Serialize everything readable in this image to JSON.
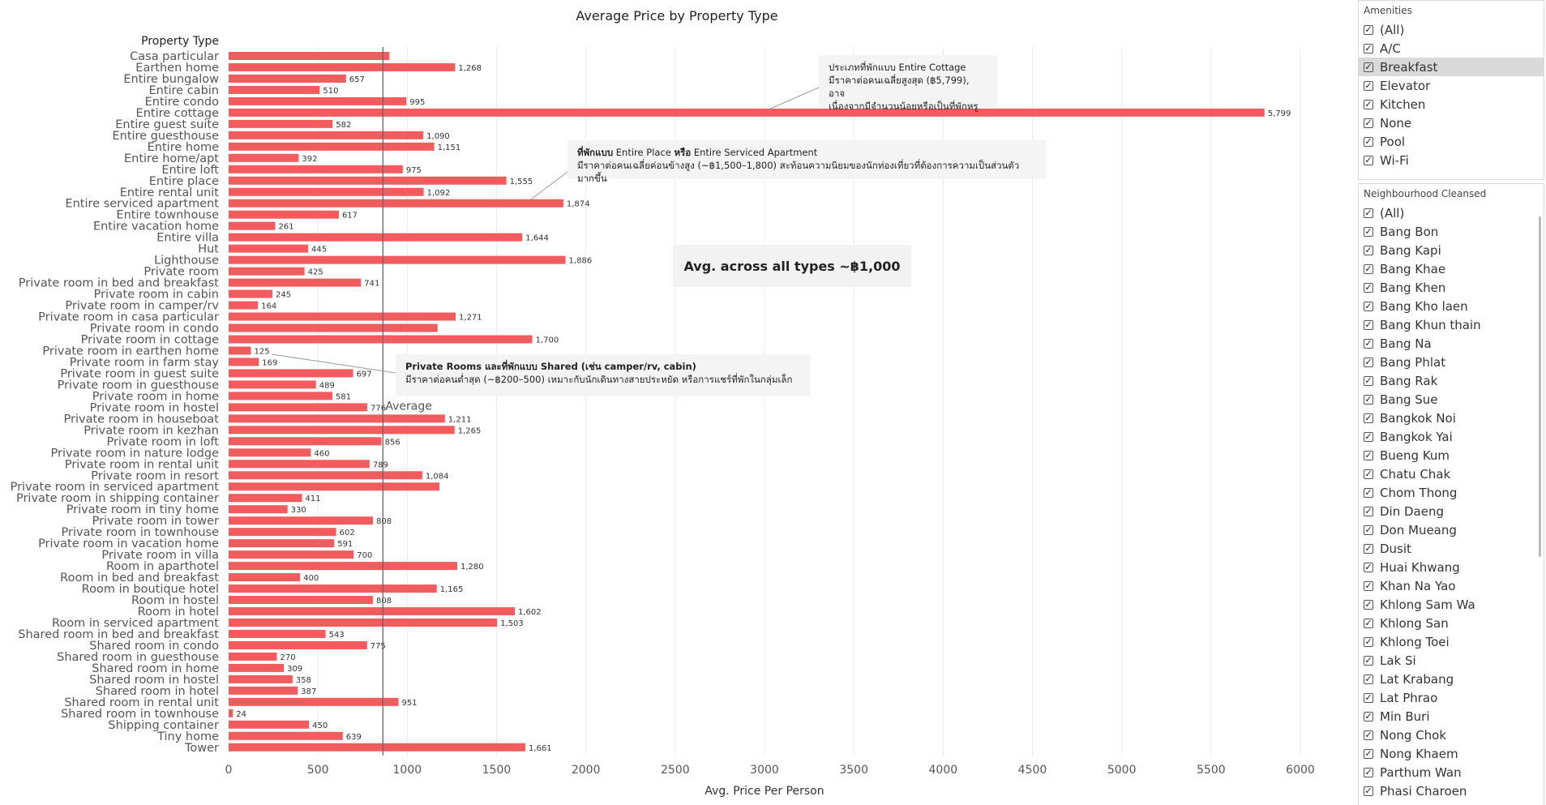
{
  "chart_data": {
    "type": "bar",
    "orientation": "horizontal",
    "title": "Average Price by Property Type",
    "ylabel": "Property Type",
    "xlabel": "Avg. Price Per Person",
    "xlim": [
      0,
      6000
    ],
    "xticks": [
      0,
      500,
      1000,
      1500,
      2000,
      2500,
      3000,
      3500,
      4000,
      4500,
      5000,
      5500,
      6000
    ],
    "grid": true,
    "bar_color": "#f25c5f",
    "average_line": {
      "label": "Average",
      "value": 1000
    },
    "categories": [
      "Casa particular",
      "Earthen home",
      "Entire bungalow",
      "Entire cabin",
      "Entire condo",
      "Entire cottage",
      "Entire guest suite",
      "Entire guesthouse",
      "Entire home",
      "Entire home/apt",
      "Entire loft",
      "Entire place",
      "Entire rental unit",
      "Entire serviced apartment",
      "Entire townhouse",
      "Entire vacation home",
      "Entire villa",
      "Hut",
      "Lighthouse",
      "Private room",
      "Private room in bed and breakfast",
      "Private room in cabin",
      "Private room in camper/rv",
      "Private room in casa particular",
      "Private room in condo",
      "Private room in cottage",
      "Private room in earthen home",
      "Private room in farm stay",
      "Private room in guest suite",
      "Private room in guesthouse",
      "Private room in home",
      "Private room in hostel",
      "Private room in houseboat",
      "Private room in kezhan",
      "Private room in loft",
      "Private room in nature lodge",
      "Private room in rental unit",
      "Private room in resort",
      "Private room in serviced apartment",
      "Private room in shipping container",
      "Private room in tiny home",
      "Private room in tower",
      "Private room in townhouse",
      "Private room in vacation home",
      "Private room in villa",
      "Room in aparthotel",
      "Room in bed and breakfast",
      "Room in boutique hotel",
      "Room in hostel",
      "Room in hotel",
      "Room in serviced apartment",
      "Shared room in bed and breakfast",
      "Shared room in condo",
      "Shared room in guesthouse",
      "Shared room in home",
      "Shared room in hostel",
      "Shared room in hotel",
      "Shared room in rental unit",
      "Shared room in townhouse",
      "Shipping container",
      "Tiny home",
      "Tower"
    ],
    "values": [
      900,
      1268,
      657,
      510,
      995,
      5799,
      582,
      1090,
      1151,
      392,
      975,
      1555,
      1092,
      1874,
      617,
      261,
      1644,
      445,
      1886,
      425,
      741,
      245,
      164,
      1271,
      1170,
      1700,
      125,
      169,
      697,
      489,
      581,
      776,
      1211,
      1265,
      856,
      460,
      789,
      1084,
      1180,
      411,
      330,
      808,
      602,
      591,
      700,
      1280,
      400,
      1165,
      808,
      1602,
      1503,
      543,
      775,
      270,
      309,
      358,
      387,
      951,
      24,
      450,
      639,
      1661
    ],
    "data_labels": [
      "",
      "1,268",
      "657",
      "510",
      "995",
      "5,799",
      "582",
      "1,090",
      "1,151",
      "392",
      "975",
      "1,555",
      "1,092",
      "1,874",
      "617",
      "261",
      "1,644",
      "445",
      "1,886",
      "425",
      "741",
      "245",
      "164",
      "1,271",
      "",
      "1,700",
      "125",
      "169",
      "697",
      "489",
      "581",
      "776",
      "1,211",
      "1,265",
      "856",
      "460",
      "789",
      "1,084",
      "",
      "411",
      "330",
      "808",
      "602",
      "591",
      "700",
      "1,280",
      "400",
      "1,165",
      "808",
      "1,602",
      "1,503",
      "543",
      "775",
      "270",
      "309",
      "358",
      "387",
      "951",
      "24",
      "450",
      "639",
      "1,661"
    ]
  },
  "annotations": {
    "cottage": {
      "line1": "ประเภทที่พักแบบ Entire Cottage",
      "line2": "มีราคาต่อคนเฉลี่ยสูงสุด (฿5,799), อาจ",
      "line3": "เนื่องจากมีจำนวนน้อยหรือเป็นที่พักหรู"
    },
    "entire": {
      "line1_bold": "ที่พักแบบ",
      "line1_rest": " Entire Place ",
      "line1_bold2": "หรือ",
      "line1_end": " Entire Serviced Apartment",
      "line2": "มีราคาต่อคนเฉลี่ยค่อนข้างสูง (~฿1,500–1,800) สะท้อนความนิยมของนักท่องเที่ยวที่ต้องการความเป็นส่วนตัวมากขึ้น"
    },
    "private": {
      "line1": "Private Rooms และที่พักแบบ Shared (เช่น camper/rv, cabin)",
      "line2": "มีราคาต่อคนต่ำสุด (~฿200–500) เหมาะกับนักเดินทางสายประหยัด หรือการแชร์ที่พักในกลุ่มเล็ก"
    },
    "avg_box": "Avg. across all types ~฿1,000"
  },
  "filters": {
    "amenities": {
      "title": "Amenities",
      "items": [
        "(All)",
        "A/C",
        "Breakfast",
        "Elevator",
        "Kitchen",
        "None",
        "Pool",
        "Wi-Fi"
      ],
      "highlighted": "Breakfast"
    },
    "neighbourhood": {
      "title": "Neighbourhood Cleansed",
      "items": [
        "(All)",
        "Bang Bon",
        "Bang Kapi",
        "Bang Khae",
        "Bang Khen",
        "Bang Kho laen",
        "Bang Khun thain",
        "Bang Na",
        "Bang Phlat",
        "Bang Rak",
        "Bang Sue",
        "Bangkok Noi",
        "Bangkok Yai",
        "Bueng Kum",
        "Chatu Chak",
        "Chom Thong",
        "Din Daeng",
        "Don Mueang",
        "Dusit",
        "Huai Khwang",
        "Khan Na Yao",
        "Khlong Sam Wa",
        "Khlong San",
        "Khlong Toei",
        "Lak Si",
        "Lat Krabang",
        "Lat Phrao",
        "Min Buri",
        "Nong Chok",
        "Nong Khaem",
        "Parthum Wan",
        "Phasi Charoen"
      ]
    },
    "check_glyph": "✓"
  }
}
